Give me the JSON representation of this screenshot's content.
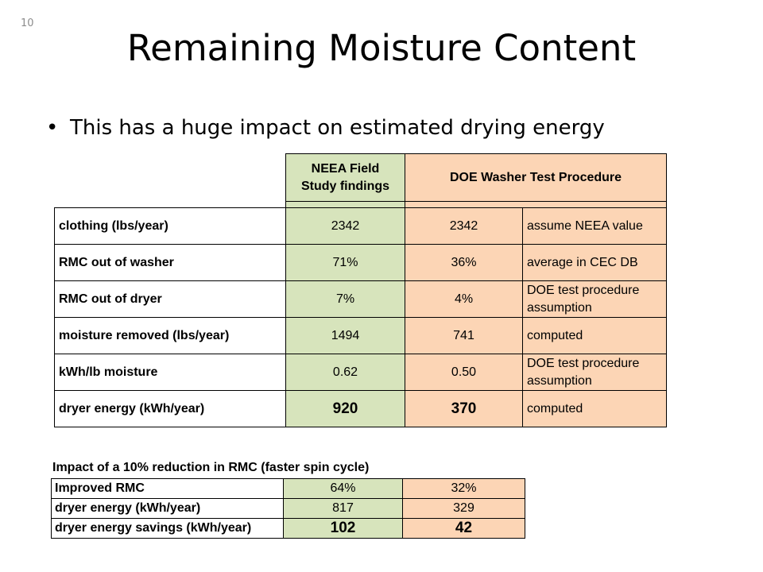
{
  "slide": {
    "number": "10",
    "title": "Remaining Moisture Content",
    "bullet": "This has a huge impact on estimated drying energy"
  },
  "main_table": {
    "header": {
      "neea": [
        "NEEA Field",
        "Study findings"
      ],
      "doe": "DOE Washer Test Procedure"
    },
    "rows": [
      {
        "label": "clothing (lbs/year)",
        "neea": "2342",
        "doe": "2342",
        "note": [
          "assume NEEA value"
        ]
      },
      {
        "label": "RMC out of washer",
        "neea": "71%",
        "doe": "36%",
        "note": [
          "average in CEC DB"
        ]
      },
      {
        "label": "RMC out of dryer",
        "neea": "7%",
        "doe": "4%",
        "note": [
          "DOE test procedure",
          "assumption"
        ]
      },
      {
        "label": "moisture removed (lbs/year)",
        "neea": "1494",
        "doe": "741",
        "note": [
          "computed"
        ]
      },
      {
        "label": "kWh/lb moisture",
        "neea": "0.62",
        "doe": "0.50",
        "note": [
          "DOE test procedure",
          "assumption"
        ]
      },
      {
        "label": "dryer energy (kWh/year)",
        "neea": "920",
        "doe": "370",
        "note": [
          "computed"
        ]
      }
    ]
  },
  "impact_table": {
    "title": "Impact of a 10% reduction in RMC (faster spin cycle)",
    "rows": [
      {
        "label": "Improved RMC",
        "neea": "64%",
        "doe": "32%"
      },
      {
        "label": "dryer energy (kWh/year)",
        "neea": "817",
        "doe": "329"
      },
      {
        "label": "dryer energy savings (kWh/year)",
        "neea": "102",
        "doe": "42"
      }
    ]
  },
  "colors": {
    "neea_fill": "#d7e4bc",
    "doe_fill": "#fcd5b5"
  }
}
